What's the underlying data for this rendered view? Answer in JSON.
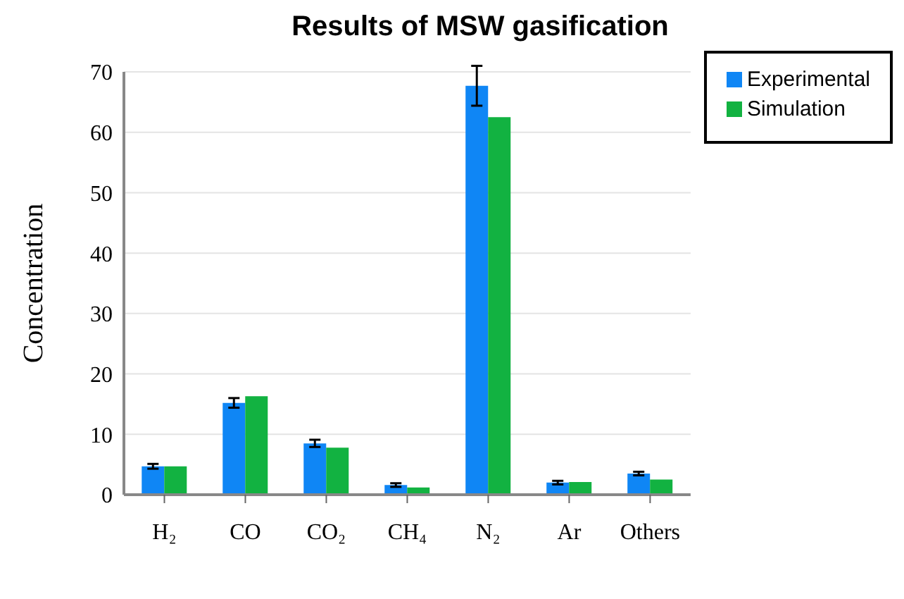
{
  "chart_data": {
    "type": "bar",
    "title": "Results of MSW gasification",
    "ylabel": "Concentration",
    "categories": [
      "H₂",
      "CO",
      "CO₂",
      "CH₄",
      "N₂",
      "Ar",
      "Others"
    ],
    "series": [
      {
        "name": "Experimental",
        "color": "#0f86f5",
        "values": [
          4.7,
          15.2,
          8.5,
          1.6,
          67.7,
          2.0,
          3.5
        ],
        "errors": [
          0.4,
          0.8,
          0.6,
          0.3,
          3.3,
          0.3,
          0.3
        ]
      },
      {
        "name": "Simulation",
        "color": "#12b241",
        "values": [
          4.7,
          16.3,
          7.8,
          1.2,
          62.5,
          2.1,
          2.5
        ]
      }
    ],
    "ylim": [
      0,
      70
    ],
    "yticks": [
      0,
      10,
      20,
      30,
      40,
      50,
      60,
      70
    ],
    "grid": "y",
    "legend": "top right"
  }
}
